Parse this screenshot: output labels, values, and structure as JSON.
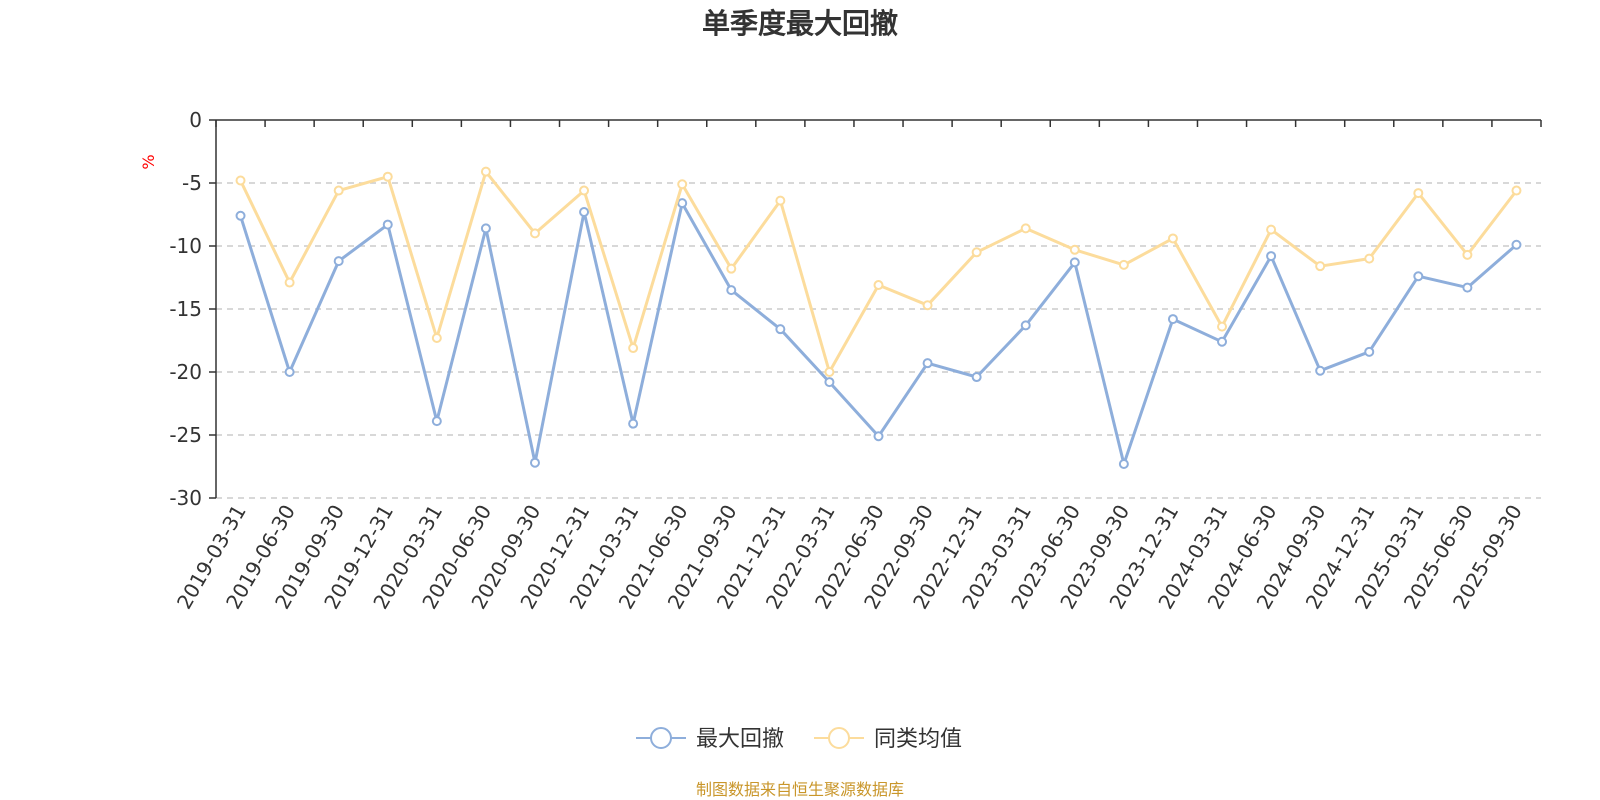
{
  "chart_data": {
    "type": "line",
    "title": "单季度最大回撤",
    "ylabel": "%",
    "xlabel": "",
    "ylim": [
      -30,
      0
    ],
    "yticks": [
      0,
      -5,
      -10,
      -15,
      -20,
      -25,
      -30
    ],
    "grid": true,
    "legend_position": "bottom",
    "categories": [
      "2019-03-31",
      "2019-06-30",
      "2019-09-30",
      "2019-12-31",
      "2020-03-31",
      "2020-06-30",
      "2020-09-30",
      "2020-12-31",
      "2021-03-31",
      "2021-06-30",
      "2021-09-30",
      "2021-12-31",
      "2022-03-31",
      "2022-06-30",
      "2022-09-30",
      "2022-12-31",
      "2023-03-31",
      "2023-06-30",
      "2023-09-30",
      "2023-12-31",
      "2024-03-31",
      "2024-06-30",
      "2024-09-30",
      "2024-12-31",
      "2025-03-31",
      "2025-06-30",
      "2025-09-30"
    ],
    "series": [
      {
        "name": "最大回撤",
        "color": "#8eaedb",
        "values": [
          -7.6,
          -20.0,
          -11.2,
          -8.3,
          -23.9,
          -8.6,
          -27.2,
          -7.3,
          -24.1,
          -6.6,
          -13.5,
          -16.6,
          -20.8,
          -25.1,
          -19.3,
          -20.4,
          -16.3,
          -11.3,
          -27.3,
          -15.8,
          -17.6,
          -10.8,
          -19.9,
          -18.4,
          -12.4,
          -13.3,
          -9.9
        ]
      },
      {
        "name": "同类均值",
        "color": "#fcdc9c",
        "values": [
          -4.8,
          -12.9,
          -5.6,
          -4.5,
          -17.3,
          -4.1,
          -9.0,
          -5.6,
          -18.1,
          -5.1,
          -11.8,
          -6.4,
          -20.0,
          -13.1,
          -14.7,
          -10.5,
          -8.6,
          -10.3,
          -11.5,
          -9.4,
          -16.4,
          -8.7,
          -11.6,
          -11.0,
          -5.8,
          -10.7,
          -5.6
        ]
      }
    ]
  },
  "source": "制图数据来自恒生聚源数据库"
}
